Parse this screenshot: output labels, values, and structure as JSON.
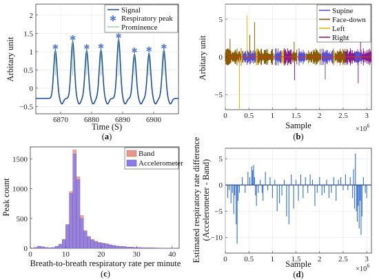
{
  "chart_data": [
    {
      "id": "a",
      "type": "line",
      "caption_label": "a",
      "xlabel": "Time (S)",
      "ylabel": "Arbitary unit",
      "xlim": [
        6862,
        6908
      ],
      "ylim": [
        -0.7,
        2.3
      ],
      "xticks": [
        6870,
        6880,
        6890,
        6900
      ],
      "yticks": [
        -0.5,
        0,
        0.5,
        1,
        1.5,
        2
      ],
      "legend_position": "top-right",
      "colors": {
        "signal": "#1f4e9c",
        "peak": "#5b7fd6",
        "prominence": "#7fd08a"
      },
      "series": [
        {
          "name": "Signal",
          "style": "line",
          "peak_times": [
            6868.3,
            6873.9,
            6878.4,
            6883.0,
            6888.7,
            6893.8,
            6898.5,
            6903.3
          ],
          "peak_values": [
            1.02,
            1.26,
            1.02,
            1.04,
            1.32,
            0.92,
            0.95,
            1.03
          ]
        },
        {
          "name": "Respiratory peak",
          "style": "marker",
          "x": [
            6868.3,
            6873.9,
            6878.4,
            6883.0,
            6888.7,
            6893.8,
            6898.5,
            6903.3
          ],
          "y": [
            1.02,
            1.26,
            1.02,
            1.04,
            1.32,
            0.92,
            0.95,
            1.03
          ]
        },
        {
          "name": "Prominence",
          "style": "line"
        }
      ]
    },
    {
      "id": "b",
      "type": "area",
      "caption_label": "b",
      "xlabel": "Sample",
      "ylabel": "Arbitary unit",
      "x_exponent": "×10",
      "x_exponent_power": "6",
      "xlim": [
        0,
        3.1
      ],
      "ylim": [
        -7,
        7
      ],
      "xticks": [
        0,
        0.5,
        1,
        1.5,
        2,
        2.5,
        3
      ],
      "yticks": [
        -5,
        0,
        5
      ],
      "legend_position": "top-right",
      "series": [
        {
          "name": "Supine",
          "color": "#5a4fcf",
          "segments": [
            [
              0.36,
              0.66
            ],
            [
              1.05,
              1.2
            ],
            [
              1.55,
              1.7
            ],
            [
              2.05,
              2.3
            ],
            [
              2.75,
              2.9
            ]
          ]
        },
        {
          "name": "Face-down",
          "color": "#8a5a00",
          "segments": [
            [
              0.0,
              0.34
            ],
            [
              0.68,
              1.03
            ],
            [
              1.4,
              1.53
            ],
            [
              1.72,
              2.03
            ],
            [
              2.32,
              2.55
            ]
          ]
        },
        {
          "name": "Left",
          "color": "#e8b800",
          "segments": [
            [
              0.34,
              0.36
            ],
            [
              0.66,
              0.68
            ],
            [
              1.2,
              1.25
            ],
            [
              2.3,
              2.32
            ]
          ]
        },
        {
          "name": "Right",
          "color": "#8b1a8b",
          "segments": [
            [
              1.25,
              1.4
            ],
            [
              2.55,
              2.75
            ],
            [
              2.9,
              3.1
            ]
          ]
        }
      ],
      "extremes": [
        {
          "x": 0.3,
          "y": -6.9,
          "series": "Left"
        },
        {
          "x": 0.46,
          "y": 5.5,
          "series": "Left"
        },
        {
          "x": 0.62,
          "y": 4.6,
          "series": "Face-down"
        },
        {
          "x": 0.52,
          "y": 2.9,
          "series": "Face-down"
        },
        {
          "x": 2.87,
          "y": 3.2,
          "series": "Right"
        },
        {
          "x": 2.82,
          "y": -3.5,
          "series": "Right"
        },
        {
          "x": 2.12,
          "y": -3.0,
          "series": "Supine"
        },
        {
          "x": 1.46,
          "y": 2.0,
          "series": "Face-down"
        },
        {
          "x": 1.47,
          "y": -3.1,
          "series": "Right"
        },
        {
          "x": 0.1,
          "y": 2.4,
          "series": "Face-down"
        }
      ]
    },
    {
      "id": "c",
      "type": "bar",
      "caption_label": "c",
      "xlabel": "Breath-to-breath respiratory rate per minute",
      "ylabel": "Peak count",
      "xlim": [
        0,
        42
      ],
      "ylim": [
        0,
        1700
      ],
      "xticks": [
        0,
        10,
        20,
        30,
        40
      ],
      "yticks": [
        0,
        500,
        1000,
        1500
      ],
      "legend_position": "top-right",
      "bin_width": 1,
      "bin_starts": [
        1,
        2,
        3,
        4,
        5,
        6,
        7,
        8,
        9,
        10,
        11,
        12,
        13,
        14,
        15,
        16,
        17,
        18,
        19,
        20,
        21,
        22,
        23,
        24,
        25,
        26,
        27,
        28,
        29,
        30,
        31,
        32,
        33,
        34,
        35,
        36,
        37,
        38,
        39,
        40
      ],
      "series": [
        {
          "name": "Band",
          "color": "#e8958a",
          "values": [
            10,
            30,
            20,
            10,
            5,
            10,
            30,
            60,
            140,
            380,
            950,
            1650,
            1200,
            550,
            300,
            200,
            150,
            120,
            100,
            90,
            80,
            60,
            50,
            40,
            30,
            30,
            20,
            20,
            15,
            15,
            12,
            10,
            8,
            10,
            6,
            5,
            4,
            3,
            2,
            2
          ]
        },
        {
          "name": "Accelerometer",
          "color": "#8a7be6",
          "values": [
            15,
            35,
            25,
            15,
            10,
            15,
            35,
            70,
            150,
            400,
            920,
            1580,
            1150,
            500,
            280,
            190,
            140,
            110,
            90,
            80,
            70,
            55,
            45,
            35,
            30,
            25,
            20,
            18,
            14,
            12,
            10,
            8,
            7,
            8,
            5,
            4,
            3,
            3,
            2,
            2
          ]
        }
      ]
    },
    {
      "id": "d",
      "type": "bar",
      "caption_label": "d",
      "xlabel": "Sample",
      "ylabel": "Estimated respiratory rate difference",
      "ylabel_line2": "(Accelerometer - Band)",
      "x_exponent": "×10",
      "x_exponent_power": "6",
      "xlim": [
        0,
        3.1
      ],
      "ylim": [
        -13,
        7
      ],
      "xticks": [
        0,
        0.5,
        1,
        1.5,
        2,
        2.5,
        3
      ],
      "yticks": [
        -10,
        -5,
        0,
        5
      ],
      "series": [
        {
          "name": "Difference",
          "color": "#2f6bd0",
          "x": [
            0.05,
            0.08,
            0.12,
            0.15,
            0.18,
            0.2,
            0.23,
            0.25,
            0.27,
            0.3,
            0.36,
            0.42,
            0.48,
            0.52,
            0.56,
            0.58,
            0.6,
            0.62,
            0.64,
            0.66,
            0.7,
            0.74,
            0.78,
            0.8,
            0.85,
            0.9,
            0.95,
            1.0,
            1.05,
            1.1,
            1.15,
            1.2,
            1.25,
            1.3,
            1.35,
            1.4,
            1.45,
            1.5,
            1.55,
            1.6,
            1.65,
            1.7,
            1.75,
            1.8,
            1.85,
            1.9,
            1.95,
            2.0,
            2.05,
            2.1,
            2.15,
            2.2,
            2.25,
            2.3,
            2.35,
            2.4,
            2.45,
            2.5,
            2.55,
            2.6,
            2.65,
            2.7,
            2.72,
            2.74,
            2.76,
            2.78,
            2.8,
            2.82,
            2.84,
            2.86,
            2.88,
            2.9,
            2.93,
            2.97,
            3.0
          ],
          "values": [
            -2.5,
            -1.0,
            -3.5,
            -1.5,
            -5.5,
            -2.0,
            -7.5,
            -11.2,
            -3.0,
            -1.5,
            1.5,
            -1.5,
            2.5,
            1.5,
            3.5,
            2.8,
            3.8,
            1.5,
            -2.0,
            -4.0,
            -1.5,
            1.0,
            -1.5,
            -3.0,
            2.5,
            -1.0,
            1.5,
            -2.5,
            1.0,
            -5.0,
            -3.5,
            -2.0,
            1.0,
            -6.0,
            -7.5,
            2.0,
            -4.5,
            1.0,
            -3.0,
            2.0,
            -2.5,
            1.5,
            -1.5,
            2.0,
            1.0,
            -4.0,
            -1.5,
            1.5,
            -2.0,
            -1.5,
            1.0,
            -2.5,
            -1.5,
            1.5,
            -3.0,
            1.0,
            1.5,
            -1.0,
            2.0,
            -1.0,
            1.5,
            -2.5,
            3.0,
            -4.5,
            6.0,
            -5.0,
            -7.0,
            -4.0,
            -8.3,
            -3.0,
            -9.5,
            -6.0,
            1.5,
            -1.5,
            -2.5
          ]
        }
      ]
    }
  ]
}
